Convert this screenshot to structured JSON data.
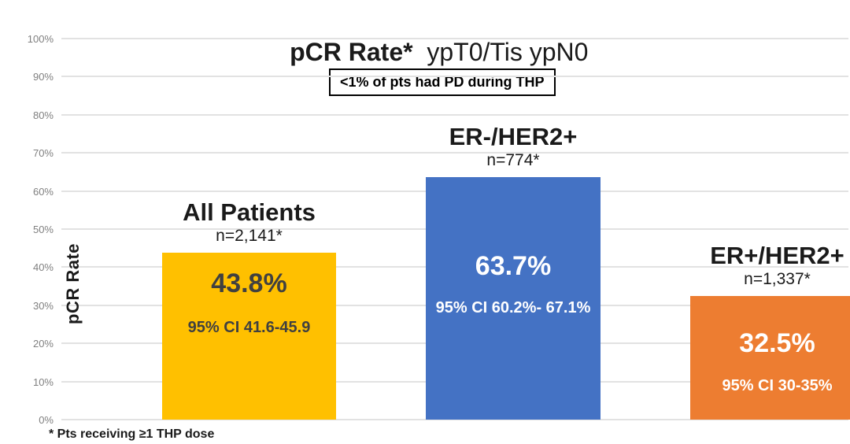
{
  "title": {
    "bold_part": "pCR Rate*",
    "regular_part": "  ypT0/Tis ypN0"
  },
  "annotation": "<1% of pts had PD during THP",
  "footnote": "* Pts receiving ≥1 THP dose",
  "colors": {
    "bar_yellow": "#FFC000",
    "bar_blue": "#4472C4",
    "bar_orange": "#ED7D31",
    "gridline": "#E2E2E2",
    "tick_text": "#7F7F7F",
    "dark_value_text": "#404040",
    "light_value_text": "#FFFFFF"
  },
  "chart_data": {
    "type": "bar",
    "title": "pCR Rate* ypT0/Tis ypN0",
    "xlabel": "",
    "ylabel": "pCR Rate",
    "ylim": [
      0,
      100
    ],
    "yticks": [
      "0%",
      "10%",
      "20%",
      "30%",
      "40%",
      "50%",
      "60%",
      "70%",
      "80%",
      "90%",
      "100%"
    ],
    "grid": true,
    "legend": "none",
    "annotation": "<1% of pts had PD during THP",
    "footnote": "* Pts receiving ≥1 THP dose",
    "categories": [
      "All Patients",
      "ER-/HER2+",
      "ER+/HER2+"
    ],
    "values": [
      43.8,
      63.7,
      32.5
    ],
    "bars": [
      {
        "label": "All Patients",
        "n_label": "n=2,141*",
        "value_pct": 43.8,
        "value_label": "43.8%",
        "ci_label": "95% CI 41.6-45.9",
        "color": "#FFC000",
        "text_color": "#404040"
      },
      {
        "label": "ER-/HER2+",
        "n_label": "n=774*",
        "value_pct": 63.7,
        "value_label": "63.7%",
        "ci_label": "95% CI 60.2%- 67.1%",
        "color": "#4472C4",
        "text_color": "#FFFFFF"
      },
      {
        "label": "ER+/HER2+",
        "n_label": "n=1,337*",
        "value_pct": 32.5,
        "value_label": "32.5%",
        "ci_label": "95% CI 30-35%",
        "color": "#ED7D31",
        "text_color": "#FFFFFF"
      }
    ]
  }
}
